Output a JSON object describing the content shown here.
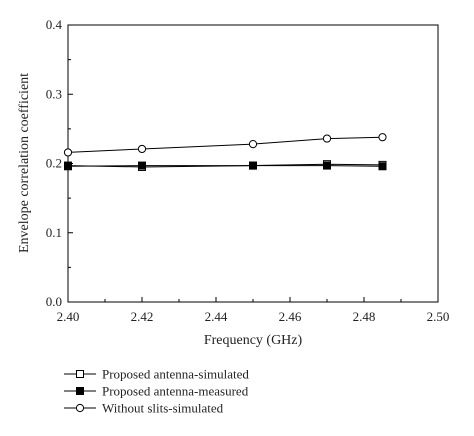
{
  "chart_data": {
    "type": "line",
    "title": "",
    "xlabel": "Frequency (GHz)",
    "ylabel": "Envelope correlation coefficient",
    "xlim": [
      2.4,
      2.5
    ],
    "ylim": [
      0.0,
      0.4
    ],
    "xticks": [
      "2.40",
      "2.42",
      "2.44",
      "2.46",
      "2.48",
      "2.50"
    ],
    "yticks": [
      "0.0",
      "0.1",
      "0.2",
      "0.3",
      "0.4"
    ],
    "grid": false,
    "legend_position": "bottom-left, outside plot",
    "series": [
      {
        "name": "Proposed antenna-simulated",
        "marker": "open-square",
        "color": "#000000",
        "x": [
          2.4,
          2.42,
          2.45,
          2.47,
          2.485
        ],
        "y": [
          0.197,
          0.195,
          0.197,
          0.199,
          0.198
        ]
      },
      {
        "name": "Proposed antenna-measured",
        "marker": "filled-square",
        "color": "#000000",
        "x": [
          2.4,
          2.42,
          2.45,
          2.47,
          2.485
        ],
        "y": [
          0.196,
          0.197,
          0.197,
          0.197,
          0.196
        ]
      },
      {
        "name": "Without slits-simulated",
        "marker": "open-circle",
        "color": "#000000",
        "x": [
          2.4,
          2.42,
          2.45,
          2.47,
          2.485
        ],
        "y": [
          0.216,
          0.221,
          0.228,
          0.236,
          0.238
        ]
      }
    ]
  }
}
